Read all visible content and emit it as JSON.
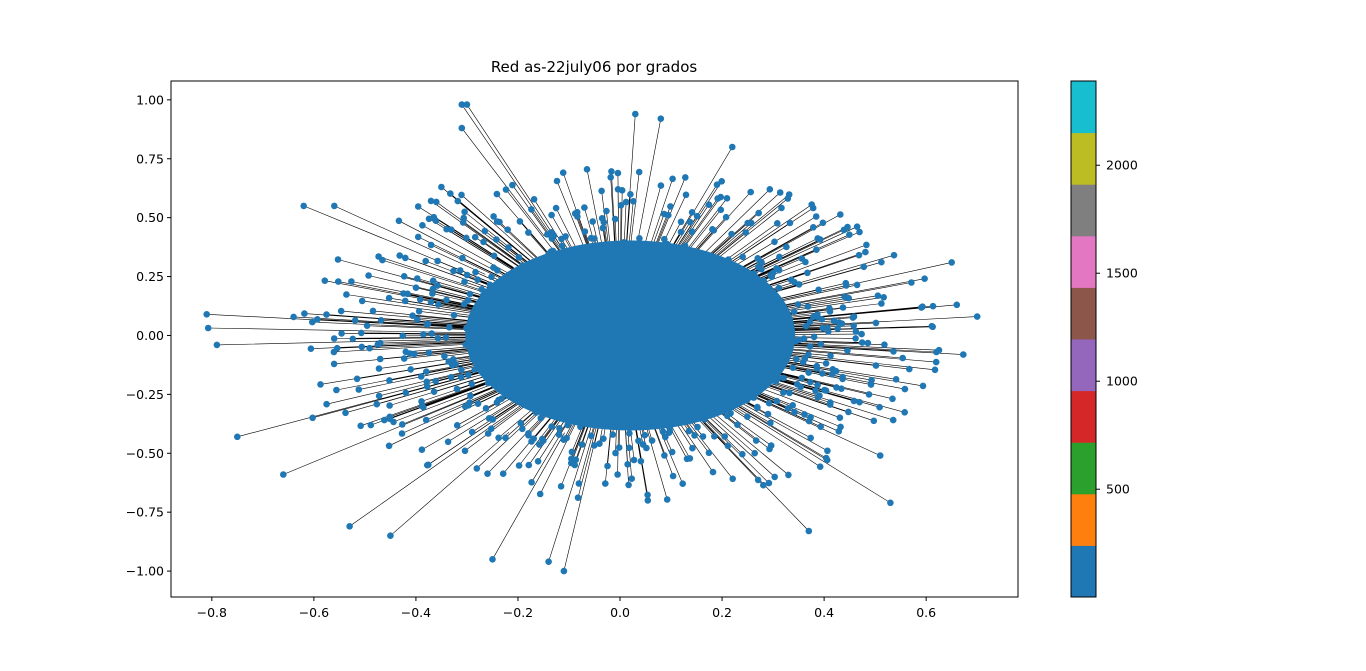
{
  "chart_data": {
    "type": "scatter",
    "title": "Red as-22july06 por grados",
    "xlabel": "",
    "ylabel": "",
    "xlim": [
      -0.88,
      0.78
    ],
    "ylim": [
      -1.11,
      1.08
    ],
    "xticks": [
      -0.8,
      -0.6,
      -0.4,
      -0.2,
      0.0,
      0.2,
      0.4,
      0.6
    ],
    "xtick_labels": [
      "−0.8",
      "−0.6",
      "−0.4",
      "−0.2",
      "0.0",
      "0.2",
      "0.4",
      "0.6"
    ],
    "yticks": [
      1.0,
      0.75,
      0.5,
      0.25,
      0.0,
      -0.25,
      -0.5,
      -0.75,
      -1.0
    ],
    "ytick_labels": [
      "1.00",
      "0.75",
      "0.50",
      "0.25",
      "0.00",
      "−0.25",
      "−0.50",
      "−0.75",
      "−1.00"
    ],
    "grid": false,
    "node_color": "#1f77b4",
    "edge_color": "#000000",
    "nodes_sample": [
      {
        "x": -0.81,
        "y": 0.09
      },
      {
        "x": -0.79,
        "y": -0.04
      },
      {
        "x": -0.75,
        "y": -0.43
      },
      {
        "x": 0.7,
        "y": 0.08
      },
      {
        "x": 0.66,
        "y": 0.13
      },
      {
        "x": 0.65,
        "y": 0.31
      },
      {
        "x": -0.31,
        "y": 0.98
      },
      {
        "x": -0.3,
        "y": 0.98
      },
      {
        "x": -0.31,
        "y": 0.88
      },
      {
        "x": 0.03,
        "y": 0.94
      },
      {
        "x": 0.08,
        "y": 0.92
      },
      {
        "x": -0.11,
        "y": -1.0
      },
      {
        "x": -0.14,
        "y": -0.96
      },
      {
        "x": -0.25,
        "y": -0.95
      },
      {
        "x": 0.37,
        "y": -0.83
      },
      {
        "x": 0.53,
        "y": -0.71
      },
      {
        "x": 0.51,
        "y": -0.51
      },
      {
        "x": -0.66,
        "y": -0.59
      },
      {
        "x": -0.62,
        "y": 0.55
      },
      {
        "x": -0.56,
        "y": 0.55
      },
      {
        "x": 0.19,
        "y": 0.64
      },
      {
        "x": -0.45,
        "y": -0.85
      },
      {
        "x": -0.53,
        "y": -0.81
      },
      {
        "x": 0.62,
        "y": -0.07
      },
      {
        "x": -0.35,
        "y": 0.63
      },
      {
        "x": 0.22,
        "y": 0.8
      }
    ],
    "colorbar": {
      "colors": [
        "#1f77b4",
        "#ff7f0e",
        "#2ca02c",
        "#d62728",
        "#9467bd",
        "#8c564b",
        "#e377c2",
        "#7f7f7f",
        "#bcbd22",
        "#17becf"
      ],
      "range": [
        1,
        2390
      ],
      "ticks": [
        500,
        1000,
        1500,
        2000
      ],
      "tick_labels": [
        "500",
        "1000",
        "1500",
        "2000"
      ]
    }
  }
}
